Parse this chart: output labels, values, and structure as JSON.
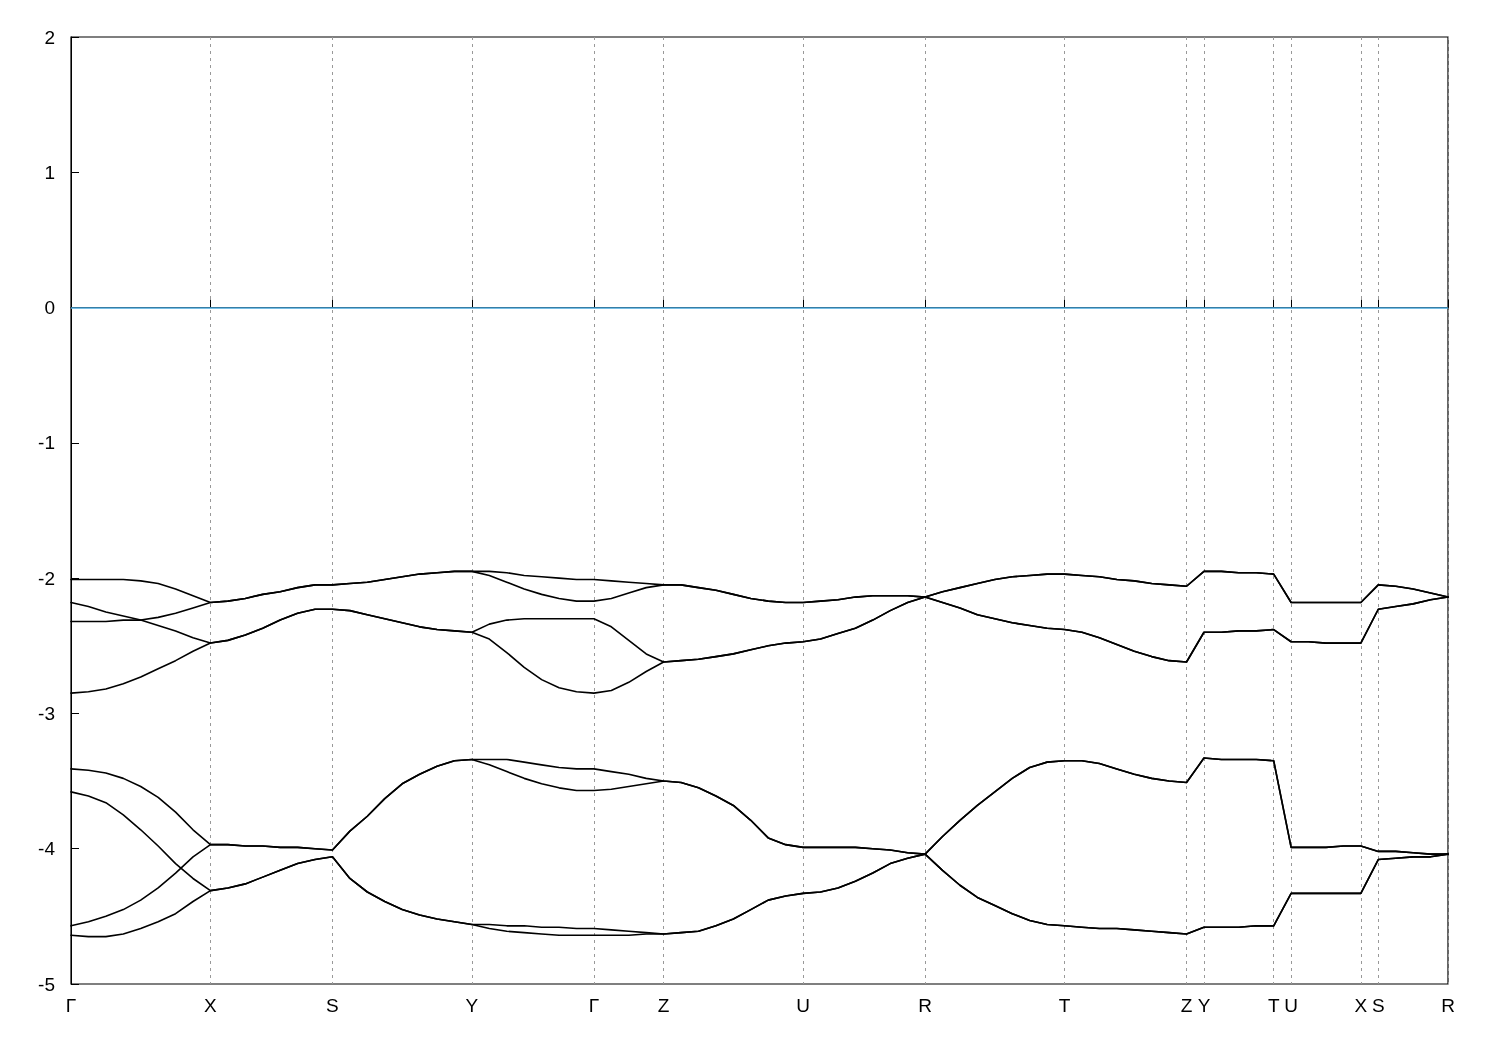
{
  "chart_data": {
    "type": "line",
    "categories": [
      "Γ",
      null,
      null,
      null,
      null,
      null,
      null,
      null,
      "X",
      null,
      null,
      null,
      null,
      null,
      null,
      "S",
      null,
      null,
      null,
      null,
      null,
      null,
      null,
      "Y",
      null,
      null,
      null,
      null,
      null,
      null,
      "Γ",
      null,
      null,
      null,
      "Z",
      null,
      null,
      null,
      null,
      null,
      null,
      null,
      "U",
      null,
      null,
      null,
      null,
      null,
      null,
      "R",
      null,
      null,
      null,
      null,
      null,
      null,
      null,
      "T",
      null,
      null,
      null,
      null,
      null,
      null,
      "Z",
      "Y",
      null,
      null,
      null,
      "T",
      "U",
      null,
      null,
      null,
      "X",
      "S",
      null,
      null,
      null,
      "R"
    ],
    "series": [
      {
        "color": "#000000",
        "values": [
          -2.01,
          -2.01,
          -2.01,
          -2.01,
          -2.02,
          -2.04,
          -2.08,
          -2.13,
          -2.18,
          -2.17,
          -2.15,
          -2.12,
          -2.1,
          -2.07,
          -2.05,
          -2.05,
          -2.04,
          -2.03,
          -2.01,
          -1.99,
          -1.97,
          -1.96,
          -1.95,
          -1.95,
          -1.95,
          -1.96,
          -1.98,
          -1.99,
          -2.0,
          -2.01,
          -2.01,
          -2.02,
          -2.03,
          -2.04,
          -2.05,
          -2.05,
          -2.07,
          -2.09,
          -2.12,
          -2.15,
          -2.17,
          -2.18,
          -2.18,
          -2.17,
          -2.16,
          -2.14,
          -2.13,
          -2.13,
          -2.13,
          -2.14,
          -2.1,
          -2.07,
          -2.04,
          -2.01,
          -1.99,
          -1.98,
          -1.97,
          -1.97,
          -1.98,
          -1.99,
          -2.01,
          -2.02,
          -2.04,
          -2.05,
          -2.06,
          -1.95,
          -1.95,
          -1.96,
          -1.96,
          -1.97,
          -2.18,
          -2.18,
          -2.18,
          -2.18,
          -2.18,
          -2.05,
          -2.06,
          -2.08,
          -2.11,
          -2.14
        ]
      },
      {
        "color": "#000000",
        "values": [
          -2.32,
          -2.32,
          -2.32,
          -2.31,
          -2.31,
          -2.29,
          -2.26,
          -2.22,
          -2.18,
          -2.17,
          -2.15,
          -2.12,
          -2.1,
          -2.07,
          -2.05,
          -2.05,
          -2.04,
          -2.03,
          -2.01,
          -1.99,
          -1.97,
          -1.96,
          -1.95,
          -1.95,
          -1.98,
          -2.03,
          -2.08,
          -2.12,
          -2.15,
          -2.17,
          -2.17,
          -2.15,
          -2.11,
          -2.07,
          -2.05,
          -2.05,
          -2.07,
          -2.09,
          -2.12,
          -2.15,
          -2.17,
          -2.18,
          -2.18,
          -2.17,
          -2.16,
          -2.14,
          -2.13,
          -2.13,
          -2.13,
          -2.14,
          -2.1,
          -2.07,
          -2.04,
          -2.01,
          -1.99,
          -1.98,
          -1.97,
          -1.97,
          -1.98,
          -1.99,
          -2.01,
          -2.02,
          -2.04,
          -2.05,
          -2.06,
          -1.95,
          -1.95,
          -1.96,
          -1.96,
          -1.97,
          -2.18,
          -2.18,
          -2.18,
          -2.18,
          -2.18,
          -2.05,
          -2.06,
          -2.08,
          -2.11,
          -2.14
        ]
      },
      {
        "color": "#000000",
        "values": [
          -2.18,
          -2.21,
          -2.25,
          -2.28,
          -2.31,
          -2.35,
          -2.39,
          -2.44,
          -2.48,
          -2.46,
          -2.42,
          -2.37,
          -2.31,
          -2.26,
          -2.23,
          -2.23,
          -2.24,
          -2.27,
          -2.3,
          -2.33,
          -2.36,
          -2.38,
          -2.39,
          -2.4,
          -2.34,
          -2.31,
          -2.3,
          -2.3,
          -2.3,
          -2.3,
          -2.3,
          -2.36,
          -2.46,
          -2.56,
          -2.62,
          -2.61,
          -2.6,
          -2.58,
          -2.56,
          -2.53,
          -2.5,
          -2.48,
          -2.47,
          -2.45,
          -2.41,
          -2.37,
          -2.31,
          -2.24,
          -2.18,
          -2.14,
          -2.18,
          -2.22,
          -2.27,
          -2.3,
          -2.33,
          -2.35,
          -2.37,
          -2.38,
          -2.4,
          -2.44,
          -2.49,
          -2.54,
          -2.58,
          -2.61,
          -2.62,
          -2.4,
          -2.4,
          -2.39,
          -2.39,
          -2.38,
          -2.47,
          -2.47,
          -2.48,
          -2.48,
          -2.48,
          -2.23,
          -2.21,
          -2.19,
          -2.16,
          -2.14
        ]
      },
      {
        "color": "#000000",
        "values": [
          -2.85,
          -2.84,
          -2.82,
          -2.78,
          -2.73,
          -2.67,
          -2.61,
          -2.54,
          -2.48,
          -2.46,
          -2.42,
          -2.37,
          -2.31,
          -2.26,
          -2.23,
          -2.23,
          -2.24,
          -2.27,
          -2.3,
          -2.33,
          -2.36,
          -2.38,
          -2.39,
          -2.4,
          -2.45,
          -2.55,
          -2.66,
          -2.75,
          -2.81,
          -2.84,
          -2.85,
          -2.83,
          -2.77,
          -2.69,
          -2.62,
          -2.61,
          -2.6,
          -2.58,
          -2.56,
          -2.53,
          -2.5,
          -2.48,
          -2.47,
          -2.45,
          -2.41,
          -2.37,
          -2.31,
          -2.24,
          -2.18,
          -2.14,
          -2.18,
          -2.22,
          -2.27,
          -2.3,
          -2.33,
          -2.35,
          -2.37,
          -2.38,
          -2.4,
          -2.44,
          -2.49,
          -2.54,
          -2.58,
          -2.61,
          -2.62,
          -2.4,
          -2.4,
          -2.39,
          -2.39,
          -2.38,
          -2.47,
          -2.47,
          -2.48,
          -2.48,
          -2.48,
          -2.23,
          -2.21,
          -2.19,
          -2.16,
          -2.14
        ]
      },
      {
        "color": "#000000",
        "values": [
          -3.41,
          -3.42,
          -3.44,
          -3.48,
          -3.54,
          -3.62,
          -3.73,
          -3.86,
          -3.97,
          -3.97,
          -3.98,
          -3.98,
          -3.99,
          -3.99,
          -4.0,
          -4.01,
          -3.87,
          -3.76,
          -3.63,
          -3.52,
          -3.45,
          -3.39,
          -3.35,
          -3.34,
          -3.34,
          -3.34,
          -3.36,
          -3.38,
          -3.4,
          -3.41,
          -3.41,
          -3.43,
          -3.45,
          -3.48,
          -3.5,
          -3.51,
          -3.55,
          -3.61,
          -3.68,
          -3.79,
          -3.92,
          -3.97,
          -3.99,
          -3.99,
          -3.99,
          -3.99,
          -4.0,
          -4.01,
          -4.03,
          -4.04,
          -3.91,
          -3.79,
          -3.68,
          -3.58,
          -3.48,
          -3.4,
          -3.36,
          -3.35,
          -3.35,
          -3.37,
          -3.41,
          -3.45,
          -3.48,
          -3.5,
          -3.51,
          -3.33,
          -3.34,
          -3.34,
          -3.34,
          -3.35,
          -3.99,
          -3.99,
          -3.99,
          -3.98,
          -3.98,
          -4.02,
          -4.02,
          -4.03,
          -4.04,
          -4.04
        ]
      },
      {
        "color": "#000000",
        "values": [
          -4.57,
          -4.54,
          -4.5,
          -4.45,
          -4.38,
          -4.29,
          -4.18,
          -4.06,
          -3.97,
          -3.97,
          -3.98,
          -3.98,
          -3.99,
          -3.99,
          -4.0,
          -4.01,
          -3.87,
          -3.76,
          -3.63,
          -3.52,
          -3.45,
          -3.39,
          -3.35,
          -3.34,
          -3.38,
          -3.43,
          -3.48,
          -3.52,
          -3.55,
          -3.57,
          -3.57,
          -3.56,
          -3.54,
          -3.52,
          -3.5,
          -3.51,
          -3.55,
          -3.61,
          -3.68,
          -3.79,
          -3.92,
          -3.97,
          -3.99,
          -3.99,
          -3.99,
          -3.99,
          -4.0,
          -4.01,
          -4.03,
          -4.04,
          -3.91,
          -3.79,
          -3.68,
          -3.58,
          -3.48,
          -3.4,
          -3.36,
          -3.35,
          -3.35,
          -3.37,
          -3.41,
          -3.45,
          -3.48,
          -3.5,
          -3.51,
          -3.33,
          -3.34,
          -3.34,
          -3.34,
          -3.35,
          -3.99,
          -3.99,
          -3.99,
          -3.98,
          -3.98,
          -4.02,
          -4.02,
          -4.03,
          -4.04,
          -4.04
        ]
      },
      {
        "color": "#000000",
        "values": [
          -3.58,
          -3.61,
          -3.66,
          -3.75,
          -3.86,
          -3.98,
          -4.11,
          -4.22,
          -4.31,
          -4.29,
          -4.26,
          -4.21,
          -4.16,
          -4.11,
          -4.08,
          -4.06,
          -4.22,
          -4.32,
          -4.39,
          -4.45,
          -4.49,
          -4.52,
          -4.54,
          -4.56,
          -4.56,
          -4.57,
          -4.57,
          -4.58,
          -4.58,
          -4.59,
          -4.59,
          -4.6,
          -4.61,
          -4.62,
          -4.63,
          -4.62,
          -4.61,
          -4.57,
          -4.52,
          -4.45,
          -4.38,
          -4.35,
          -4.33,
          -4.32,
          -4.29,
          -4.24,
          -4.18,
          -4.11,
          -4.07,
          -4.04,
          -4.16,
          -4.27,
          -4.36,
          -4.42,
          -4.48,
          -4.53,
          -4.56,
          -4.57,
          -4.58,
          -4.59,
          -4.59,
          -4.6,
          -4.61,
          -4.62,
          -4.63,
          -4.58,
          -4.58,
          -4.58,
          -4.57,
          -4.57,
          -4.33,
          -4.33,
          -4.33,
          -4.33,
          -4.33,
          -4.08,
          -4.07,
          -4.06,
          -4.06,
          -4.04
        ]
      },
      {
        "color": "#000000",
        "values": [
          -4.64,
          -4.65,
          -4.65,
          -4.63,
          -4.59,
          -4.54,
          -4.48,
          -4.39,
          -4.31,
          -4.29,
          -4.26,
          -4.21,
          -4.16,
          -4.11,
          -4.08,
          -4.06,
          -4.22,
          -4.32,
          -4.39,
          -4.45,
          -4.49,
          -4.52,
          -4.54,
          -4.56,
          -4.59,
          -4.61,
          -4.62,
          -4.63,
          -4.64,
          -4.64,
          -4.64,
          -4.64,
          -4.64,
          -4.63,
          -4.63,
          -4.62,
          -4.61,
          -4.57,
          -4.52,
          -4.45,
          -4.38,
          -4.35,
          -4.33,
          -4.32,
          -4.29,
          -4.24,
          -4.18,
          -4.11,
          -4.07,
          -4.04,
          -4.16,
          -4.27,
          -4.36,
          -4.42,
          -4.48,
          -4.53,
          -4.56,
          -4.57,
          -4.58,
          -4.59,
          -4.59,
          -4.6,
          -4.61,
          -4.62,
          -4.63,
          -4.58,
          -4.58,
          -4.58,
          -4.57,
          -4.57,
          -4.33,
          -4.33,
          -4.33,
          -4.33,
          -4.33,
          -4.08,
          -4.07,
          -4.06,
          -4.06,
          -4.04
        ]
      }
    ],
    "ylim": [
      -5,
      2
    ],
    "yticks": [
      -5,
      -4,
      -3,
      -2,
      -1,
      0,
      1,
      2
    ],
    "ref_lines": [
      {
        "axis": "y",
        "value": 0,
        "color": "#4aa8dc"
      }
    ],
    "grid": "x",
    "marker": "none",
    "line_style": "solid"
  }
}
